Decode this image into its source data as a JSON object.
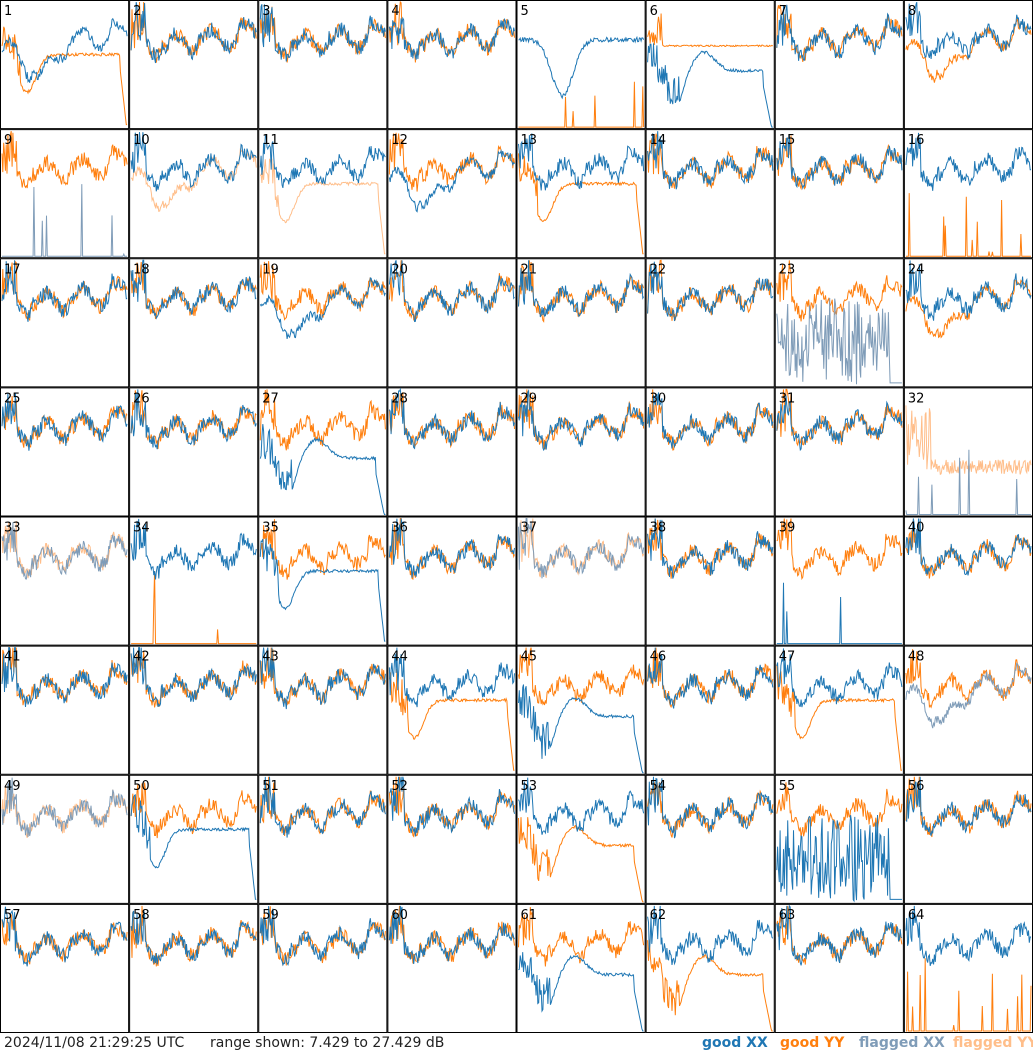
{
  "footer": {
    "timestamp": "2024/11/08 21:29:25 UTC",
    "range_prefix": "range shown:",
    "range_min": 7.429,
    "range_max": 27.429,
    "range_text": "range shown: 7.429 to 27.429 dB"
  },
  "legend": {
    "good_xx": "good XX",
    "good_yy": "good YY",
    "flagged_xx": "flagged XX",
    "flagged_yy": "flagged YY"
  },
  "colors": {
    "good_xx": "#1f77b4",
    "good_yy": "#ff7f0e",
    "flagged_xx": "#7f9cb8",
    "flagged_yy": "#ffbe8a",
    "frame": "#000000",
    "background": "#ffffff"
  },
  "chart_data": {
    "type": "line",
    "title": "",
    "grid_rows": 8,
    "grid_cols": 8,
    "ylim": [
      7.429,
      27.429
    ],
    "yunit": "dB",
    "series_names": [
      "good XX",
      "good YY",
      "flagged XX",
      "flagged YY"
    ],
    "panels": [
      {
        "label": "1",
        "xx": "good",
        "yy": "good",
        "xx_shape": "sag",
        "yy_shape": "sag_drop"
      },
      {
        "label": "2",
        "xx": "good",
        "yy": "good",
        "xx_shape": "normal",
        "yy_shape": "normal"
      },
      {
        "label": "3",
        "xx": "good",
        "yy": "good",
        "xx_shape": "normal",
        "yy_shape": "normal"
      },
      {
        "label": "4",
        "xx": "good",
        "yy": "good",
        "xx_shape": "normal",
        "yy_shape": "normal"
      },
      {
        "label": "5",
        "xx": "good",
        "yy": "good",
        "xx_shape": "dip",
        "yy_shape": "dead"
      },
      {
        "label": "6",
        "xx": "good",
        "yy": "good",
        "xx_shape": "dip_drop",
        "yy_shape": "flat_high"
      },
      {
        "label": "7",
        "xx": "good",
        "yy": "good",
        "xx_shape": "normal",
        "yy_shape": "normal"
      },
      {
        "label": "8",
        "xx": "good",
        "yy": "good",
        "xx_shape": "normal",
        "yy_shape": "sag"
      },
      {
        "label": "9",
        "xx": "flagged",
        "yy": "good",
        "xx_shape": "dead",
        "yy_shape": "normal"
      },
      {
        "label": "10",
        "xx": "good",
        "yy": "flagged",
        "xx_shape": "normal",
        "yy_shape": "sag"
      },
      {
        "label": "11",
        "xx": "good",
        "yy": "flagged",
        "xx_shape": "normal",
        "yy_shape": "sag_drop"
      },
      {
        "label": "12",
        "xx": "good",
        "yy": "good",
        "xx_shape": "sag",
        "yy_shape": "normal"
      },
      {
        "label": "13",
        "xx": "good",
        "yy": "good",
        "xx_shape": "normal",
        "yy_shape": "sag_drop"
      },
      {
        "label": "14",
        "xx": "good",
        "yy": "good",
        "xx_shape": "normal",
        "yy_shape": "normal"
      },
      {
        "label": "15",
        "xx": "good",
        "yy": "good",
        "xx_shape": "normal",
        "yy_shape": "normal"
      },
      {
        "label": "16",
        "xx": "good",
        "yy": "good",
        "xx_shape": "normal",
        "yy_shape": "dead"
      },
      {
        "label": "17",
        "xx": "good",
        "yy": "good",
        "xx_shape": "normal",
        "yy_shape": "normal"
      },
      {
        "label": "18",
        "xx": "good",
        "yy": "good",
        "xx_shape": "normal",
        "yy_shape": "normal"
      },
      {
        "label": "19",
        "xx": "good",
        "yy": "good",
        "xx_shape": "sag",
        "yy_shape": "normal"
      },
      {
        "label": "20",
        "xx": "good",
        "yy": "good",
        "xx_shape": "normal",
        "yy_shape": "normal"
      },
      {
        "label": "21",
        "xx": "good",
        "yy": "good",
        "xx_shape": "normal",
        "yy_shape": "normal"
      },
      {
        "label": "22",
        "xx": "good",
        "yy": "good",
        "xx_shape": "normal",
        "yy_shape": "normal"
      },
      {
        "label": "23",
        "xx": "flagged",
        "yy": "good",
        "xx_shape": "noise_low",
        "yy_shape": "normal"
      },
      {
        "label": "24",
        "xx": "good",
        "yy": "good",
        "xx_shape": "normal",
        "yy_shape": "sag"
      },
      {
        "label": "25",
        "xx": "good",
        "yy": "good",
        "xx_shape": "normal",
        "yy_shape": "normal"
      },
      {
        "label": "26",
        "xx": "good",
        "yy": "good",
        "xx_shape": "normal",
        "yy_shape": "normal"
      },
      {
        "label": "27",
        "xx": "good",
        "yy": "good",
        "xx_shape": "dip_drop",
        "yy_shape": "normal"
      },
      {
        "label": "28",
        "xx": "good",
        "yy": "good",
        "xx_shape": "normal",
        "yy_shape": "normal"
      },
      {
        "label": "29",
        "xx": "good",
        "yy": "good",
        "xx_shape": "normal",
        "yy_shape": "normal"
      },
      {
        "label": "30",
        "xx": "good",
        "yy": "good",
        "xx_shape": "normal",
        "yy_shape": "normal"
      },
      {
        "label": "31",
        "xx": "good",
        "yy": "good",
        "xx_shape": "normal",
        "yy_shape": "normal"
      },
      {
        "label": "32",
        "xx": "flagged",
        "yy": "flagged",
        "xx_shape": "dead",
        "yy_shape": "mid"
      },
      {
        "label": "33",
        "xx": "flagged",
        "yy": "flagged",
        "xx_shape": "normal",
        "yy_shape": "normal"
      },
      {
        "label": "34",
        "xx": "good",
        "yy": "good",
        "xx_shape": "normal",
        "yy_shape": "dead"
      },
      {
        "label": "35",
        "xx": "good",
        "yy": "good",
        "xx_shape": "sag_drop",
        "yy_shape": "normal"
      },
      {
        "label": "36",
        "xx": "good",
        "yy": "good",
        "xx_shape": "normal",
        "yy_shape": "normal"
      },
      {
        "label": "37",
        "xx": "flagged",
        "yy": "flagged",
        "xx_shape": "normal",
        "yy_shape": "normal"
      },
      {
        "label": "38",
        "xx": "good",
        "yy": "good",
        "xx_shape": "normal",
        "yy_shape": "normal"
      },
      {
        "label": "39",
        "xx": "good",
        "yy": "good",
        "xx_shape": "dead",
        "yy_shape": "normal"
      },
      {
        "label": "40",
        "xx": "good",
        "yy": "good",
        "xx_shape": "normal",
        "yy_shape": "normal"
      },
      {
        "label": "41",
        "xx": "good",
        "yy": "good",
        "xx_shape": "normal",
        "yy_shape": "normal"
      },
      {
        "label": "42",
        "xx": "good",
        "yy": "good",
        "xx_shape": "normal",
        "yy_shape": "normal"
      },
      {
        "label": "43",
        "xx": "good",
        "yy": "good",
        "xx_shape": "normal",
        "yy_shape": "normal"
      },
      {
        "label": "44",
        "xx": "good",
        "yy": "good",
        "xx_shape": "normal",
        "yy_shape": "sag_drop"
      },
      {
        "label": "45",
        "xx": "good",
        "yy": "good",
        "xx_shape": "dip_drop",
        "yy_shape": "normal"
      },
      {
        "label": "46",
        "xx": "good",
        "yy": "good",
        "xx_shape": "normal",
        "yy_shape": "normal"
      },
      {
        "label": "47",
        "xx": "good",
        "yy": "good",
        "xx_shape": "normal",
        "yy_shape": "sag_drop"
      },
      {
        "label": "48",
        "xx": "flagged",
        "yy": "good",
        "xx_shape": "sag",
        "yy_shape": "normal"
      },
      {
        "label": "49",
        "xx": "flagged",
        "yy": "flagged",
        "xx_shape": "normal",
        "yy_shape": "normal"
      },
      {
        "label": "50",
        "xx": "good",
        "yy": "good",
        "xx_shape": "sag_drop",
        "yy_shape": "normal"
      },
      {
        "label": "51",
        "xx": "good",
        "yy": "good",
        "xx_shape": "normal",
        "yy_shape": "normal"
      },
      {
        "label": "52",
        "xx": "good",
        "yy": "good",
        "xx_shape": "normal",
        "yy_shape": "normal"
      },
      {
        "label": "53",
        "xx": "good",
        "yy": "good",
        "xx_shape": "normal",
        "yy_shape": "dip_drop"
      },
      {
        "label": "54",
        "xx": "good",
        "yy": "good",
        "xx_shape": "normal",
        "yy_shape": "normal"
      },
      {
        "label": "55",
        "xx": "good",
        "yy": "good",
        "xx_shape": "noise_low",
        "yy_shape": "normal"
      },
      {
        "label": "56",
        "xx": "good",
        "yy": "good",
        "xx_shape": "normal",
        "yy_shape": "normal"
      },
      {
        "label": "57",
        "xx": "good",
        "yy": "good",
        "xx_shape": "normal",
        "yy_shape": "normal"
      },
      {
        "label": "58",
        "xx": "good",
        "yy": "good",
        "xx_shape": "normal",
        "yy_shape": "normal"
      },
      {
        "label": "59",
        "xx": "good",
        "yy": "good",
        "xx_shape": "normal",
        "yy_shape": "normal"
      },
      {
        "label": "60",
        "xx": "good",
        "yy": "good",
        "xx_shape": "normal",
        "yy_shape": "normal"
      },
      {
        "label": "61",
        "xx": "good",
        "yy": "good",
        "xx_shape": "dip_drop",
        "yy_shape": "normal"
      },
      {
        "label": "62",
        "xx": "good",
        "yy": "good",
        "xx_shape": "normal",
        "yy_shape": "dip_drop"
      },
      {
        "label": "63",
        "xx": "good",
        "yy": "good",
        "xx_shape": "normal",
        "yy_shape": "normal"
      },
      {
        "label": "64",
        "xx": "good",
        "yy": "good",
        "xx_shape": "normal",
        "yy_shape": "dead"
      }
    ]
  }
}
